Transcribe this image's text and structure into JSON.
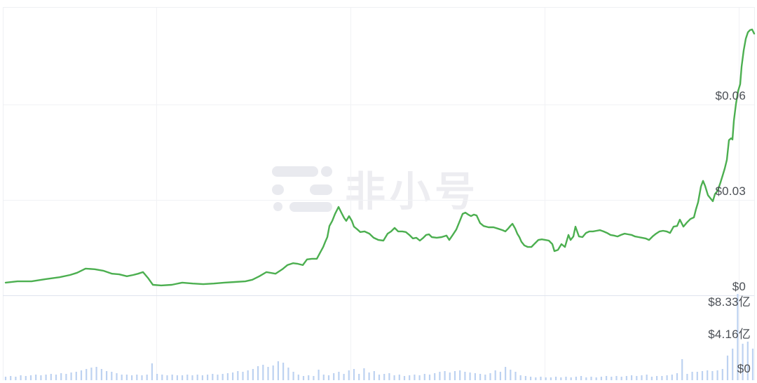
{
  "page": {
    "background": "#ffffff"
  },
  "watermark": {
    "text": "非小号"
  },
  "colors": {
    "price_line": "#4caf50",
    "volume_bar": "#bdd2f1",
    "gridline": "#f1f2f5",
    "panel_divider": "#dfe4ee",
    "axis_label_text": "#4b4f55",
    "watermark_gray": "#ededf1"
  },
  "chart_data": [
    {
      "type": "line",
      "name": "price",
      "title": "",
      "xlabel": "",
      "ylabel": "",
      "grid": true,
      "legend_position": "none",
      "axis_position": "right",
      "line_color": "#4caf50",
      "ylim": [
        0,
        0.0904
      ],
      "yticks": [
        {
          "label": "$0.06",
          "value": 0.06
        },
        {
          "label": "$0.03",
          "value": 0.03
        },
        {
          "label": "$0",
          "value": 0
        }
      ],
      "points": [
        [
          0.0074,
          0.004
        ],
        [
          0.0231,
          0.0044
        ],
        [
          0.0417,
          0.0044
        ],
        [
          0.0602,
          0.0051
        ],
        [
          0.0787,
          0.0057
        ],
        [
          0.0926,
          0.0064
        ],
        [
          0.1019,
          0.0071
        ],
        [
          0.113,
          0.0084
        ],
        [
          0.125,
          0.0082
        ],
        [
          0.137,
          0.0077
        ],
        [
          0.1481,
          0.0068
        ],
        [
          0.1574,
          0.0066
        ],
        [
          0.1676,
          0.006
        ],
        [
          0.1759,
          0.0064
        ],
        [
          0.1824,
          0.0068
        ],
        [
          0.1889,
          0.0073
        ],
        [
          0.1954,
          0.0055
        ],
        [
          0.2019,
          0.0033
        ],
        [
          0.213,
          0.0031
        ],
        [
          0.2269,
          0.0033
        ],
        [
          0.2407,
          0.004
        ],
        [
          0.2546,
          0.0037
        ],
        [
          0.2685,
          0.0035
        ],
        [
          0.2824,
          0.0037
        ],
        [
          0.2963,
          0.004
        ],
        [
          0.3102,
          0.0042
        ],
        [
          0.3241,
          0.0044
        ],
        [
          0.3333,
          0.0049
        ],
        [
          0.3426,
          0.006
        ],
        [
          0.3519,
          0.0073
        ],
        [
          0.3639,
          0.0068
        ],
        [
          0.3731,
          0.0082
        ],
        [
          0.3796,
          0.0095
        ],
        [
          0.387,
          0.0101
        ],
        [
          0.3935,
          0.0099
        ],
        [
          0.4,
          0.0095
        ],
        [
          0.4056,
          0.0113
        ],
        [
          0.412,
          0.0115
        ],
        [
          0.4185,
          0.0115
        ],
        [
          0.4231,
          0.0135
        ],
        [
          0.4269,
          0.0152
        ],
        [
          0.4296,
          0.0168
        ],
        [
          0.4324,
          0.0183
        ],
        [
          0.4352,
          0.0218
        ],
        [
          0.4389,
          0.0234
        ],
        [
          0.4426,
          0.0256
        ],
        [
          0.4472,
          0.0278
        ],
        [
          0.4509,
          0.026
        ],
        [
          0.4546,
          0.0243
        ],
        [
          0.4574,
          0.0234
        ],
        [
          0.4611,
          0.0249
        ],
        [
          0.4648,
          0.0234
        ],
        [
          0.4676,
          0.0216
        ],
        [
          0.4722,
          0.0207
        ],
        [
          0.4759,
          0.0199
        ],
        [
          0.4815,
          0.0201
        ],
        [
          0.488,
          0.0194
        ],
        [
          0.4935,
          0.0181
        ],
        [
          0.5,
          0.0174
        ],
        [
          0.5065,
          0.0172
        ],
        [
          0.512,
          0.0194
        ],
        [
          0.5167,
          0.0201
        ],
        [
          0.5213,
          0.0212
        ],
        [
          0.5259,
          0.0201
        ],
        [
          0.5315,
          0.0201
        ],
        [
          0.5361,
          0.0199
        ],
        [
          0.5407,
          0.019
        ],
        [
          0.5454,
          0.0179
        ],
        [
          0.55,
          0.0181
        ],
        [
          0.5546,
          0.0172
        ],
        [
          0.5593,
          0.0181
        ],
        [
          0.563,
          0.019
        ],
        [
          0.5667,
          0.0192
        ],
        [
          0.5704,
          0.0183
        ],
        [
          0.5769,
          0.0181
        ],
        [
          0.5833,
          0.0183
        ],
        [
          0.5898,
          0.0188
        ],
        [
          0.5935,
          0.0174
        ],
        [
          0.5981,
          0.019
        ],
        [
          0.6028,
          0.0207
        ],
        [
          0.6074,
          0.0234
        ],
        [
          0.6111,
          0.0256
        ],
        [
          0.6148,
          0.026
        ],
        [
          0.6185,
          0.0254
        ],
        [
          0.6222,
          0.0249
        ],
        [
          0.6259,
          0.0254
        ],
        [
          0.6296,
          0.0251
        ],
        [
          0.6343,
          0.0227
        ],
        [
          0.6389,
          0.0218
        ],
        [
          0.6454,
          0.0214
        ],
        [
          0.6519,
          0.0214
        ],
        [
          0.6574,
          0.021
        ],
        [
          0.6639,
          0.0205
        ],
        [
          0.6676,
          0.0201
        ],
        [
          0.6713,
          0.021
        ],
        [
          0.6741,
          0.0218
        ],
        [
          0.6769,
          0.0225
        ],
        [
          0.6806,
          0.021
        ],
        [
          0.6833,
          0.0194
        ],
        [
          0.6861,
          0.0183
        ],
        [
          0.6889,
          0.0168
        ],
        [
          0.6926,
          0.0157
        ],
        [
          0.6972,
          0.0152
        ],
        [
          0.7019,
          0.0152
        ],
        [
          0.7065,
          0.0163
        ],
        [
          0.7111,
          0.0174
        ],
        [
          0.7157,
          0.0176
        ],
        [
          0.7204,
          0.0174
        ],
        [
          0.725,
          0.0172
        ],
        [
          0.7296,
          0.0161
        ],
        [
          0.7324,
          0.0139
        ],
        [
          0.737,
          0.0143
        ],
        [
          0.7417,
          0.0161
        ],
        [
          0.7463,
          0.0152
        ],
        [
          0.7509,
          0.019
        ],
        [
          0.7537,
          0.0174
        ],
        [
          0.7574,
          0.0185
        ],
        [
          0.7602,
          0.0216
        ],
        [
          0.7648,
          0.0185
        ],
        [
          0.7694,
          0.0183
        ],
        [
          0.7741,
          0.0196
        ],
        [
          0.7787,
          0.0201
        ],
        [
          0.7833,
          0.0201
        ],
        [
          0.788,
          0.0203
        ],
        [
          0.7926,
          0.0205
        ],
        [
          0.7972,
          0.0201
        ],
        [
          0.8019,
          0.0196
        ],
        [
          0.8065,
          0.019
        ],
        [
          0.8111,
          0.0188
        ],
        [
          0.8157,
          0.0185
        ],
        [
          0.8204,
          0.019
        ],
        [
          0.825,
          0.0194
        ],
        [
          0.8296,
          0.0192
        ],
        [
          0.8343,
          0.019
        ],
        [
          0.8389,
          0.0185
        ],
        [
          0.8435,
          0.0183
        ],
        [
          0.8481,
          0.0181
        ],
        [
          0.8528,
          0.0179
        ],
        [
          0.8574,
          0.0174
        ],
        [
          0.862,
          0.0185
        ],
        [
          0.8667,
          0.0194
        ],
        [
          0.8713,
          0.0201
        ],
        [
          0.8759,
          0.0203
        ],
        [
          0.8806,
          0.0201
        ],
        [
          0.8852,
          0.0196
        ],
        [
          0.8898,
          0.0216
        ],
        [
          0.8944,
          0.0218
        ],
        [
          0.8981,
          0.0238
        ],
        [
          0.9028,
          0.0216
        ],
        [
          0.9074,
          0.0229
        ],
        [
          0.912,
          0.024
        ],
        [
          0.9167,
          0.0245
        ],
        [
          0.9194,
          0.0271
        ],
        [
          0.9222,
          0.0293
        ],
        [
          0.9259,
          0.0342
        ],
        [
          0.9287,
          0.036
        ],
        [
          0.9315,
          0.0344
        ],
        [
          0.9352,
          0.0315
        ],
        [
          0.9389,
          0.0304
        ],
        [
          0.9417,
          0.0296
        ],
        [
          0.9444,
          0.0318
        ],
        [
          0.9481,
          0.0329
        ],
        [
          0.9518,
          0.0355
        ],
        [
          0.9546,
          0.0377
        ],
        [
          0.9574,
          0.0399
        ],
        [
          0.9602,
          0.0426
        ],
        [
          0.963,
          0.0488
        ],
        [
          0.9657,
          0.0494
        ],
        [
          0.9676,
          0.049
        ],
        [
          0.9694,
          0.0549
        ],
        [
          0.9722,
          0.0602
        ],
        [
          0.975,
          0.0642
        ],
        [
          0.9778,
          0.0664
        ],
        [
          0.9796,
          0.0719
        ],
        [
          0.9824,
          0.077
        ],
        [
          0.9852,
          0.0807
        ],
        [
          0.988,
          0.0827
        ],
        [
          0.9907,
          0.0834
        ],
        [
          0.9935,
          0.0836
        ],
        [
          0.9963,
          0.0823
        ]
      ]
    },
    {
      "type": "bar",
      "name": "volume",
      "title": "",
      "unit": "亿",
      "bar_color": "#bdd2f1",
      "ylim": [
        0,
        10.4
      ],
      "yticks": [
        {
          "label": "$8.33亿",
          "value": 8.33
        },
        {
          "label": "$4.16亿",
          "value": 4.16
        },
        {
          "label": "$0",
          "value": 0
        }
      ],
      "values": [
        0.42,
        0.5,
        0.42,
        0.58,
        0.5,
        0.58,
        0.67,
        0.58,
        0.67,
        0.75,
        0.67,
        0.83,
        0.75,
        0.92,
        1.0,
        1.17,
        1.33,
        1.5,
        1.58,
        1.33,
        1.08,
        1.0,
        0.83,
        0.67,
        0.67,
        0.58,
        0.67,
        0.58,
        0.67,
        2.0,
        0.75,
        0.67,
        0.58,
        0.67,
        0.58,
        0.58,
        0.67,
        0.58,
        0.67,
        0.58,
        0.67,
        0.75,
        0.67,
        0.75,
        0.83,
        0.92,
        1.08,
        1.0,
        1.17,
        1.33,
        1.67,
        1.83,
        1.58,
        1.75,
        2.25,
        2.08,
        1.5,
        1.0,
        0.67,
        0.5,
        0.58,
        0.5,
        1.25,
        0.67,
        0.58,
        0.83,
        1.0,
        0.75,
        1.17,
        1.33,
        0.75,
        1.42,
        0.92,
        1.08,
        0.67,
        0.75,
        0.83,
        0.58,
        0.67,
        0.5,
        0.58,
        0.67,
        0.58,
        0.75,
        0.67,
        0.83,
        1.0,
        1.08,
        0.92,
        1.08,
        1.17,
        1.0,
        0.92,
        0.83,
        0.75,
        0.67,
        0.83,
        1.17,
        1.0,
        1.58,
        1.25,
        1.0,
        0.58,
        0.5,
        0.42,
        0.33,
        0.42,
        0.33,
        0.33,
        0.42,
        0.33,
        0.42,
        0.33,
        0.42,
        0.5,
        0.33,
        0.42,
        0.33,
        0.42,
        0.5,
        0.42,
        0.5,
        0.42,
        0.5,
        0.58,
        0.5,
        0.58,
        0.67,
        0.42,
        0.5,
        0.5,
        0.58,
        0.67,
        0.83,
        2.5,
        0.75,
        1.0,
        1.0,
        1.08,
        1.17,
        1.08,
        1.17,
        1.33,
        2.92,
        3.75,
        10.25,
        4.33,
        4.58,
        3.75
      ]
    }
  ]
}
